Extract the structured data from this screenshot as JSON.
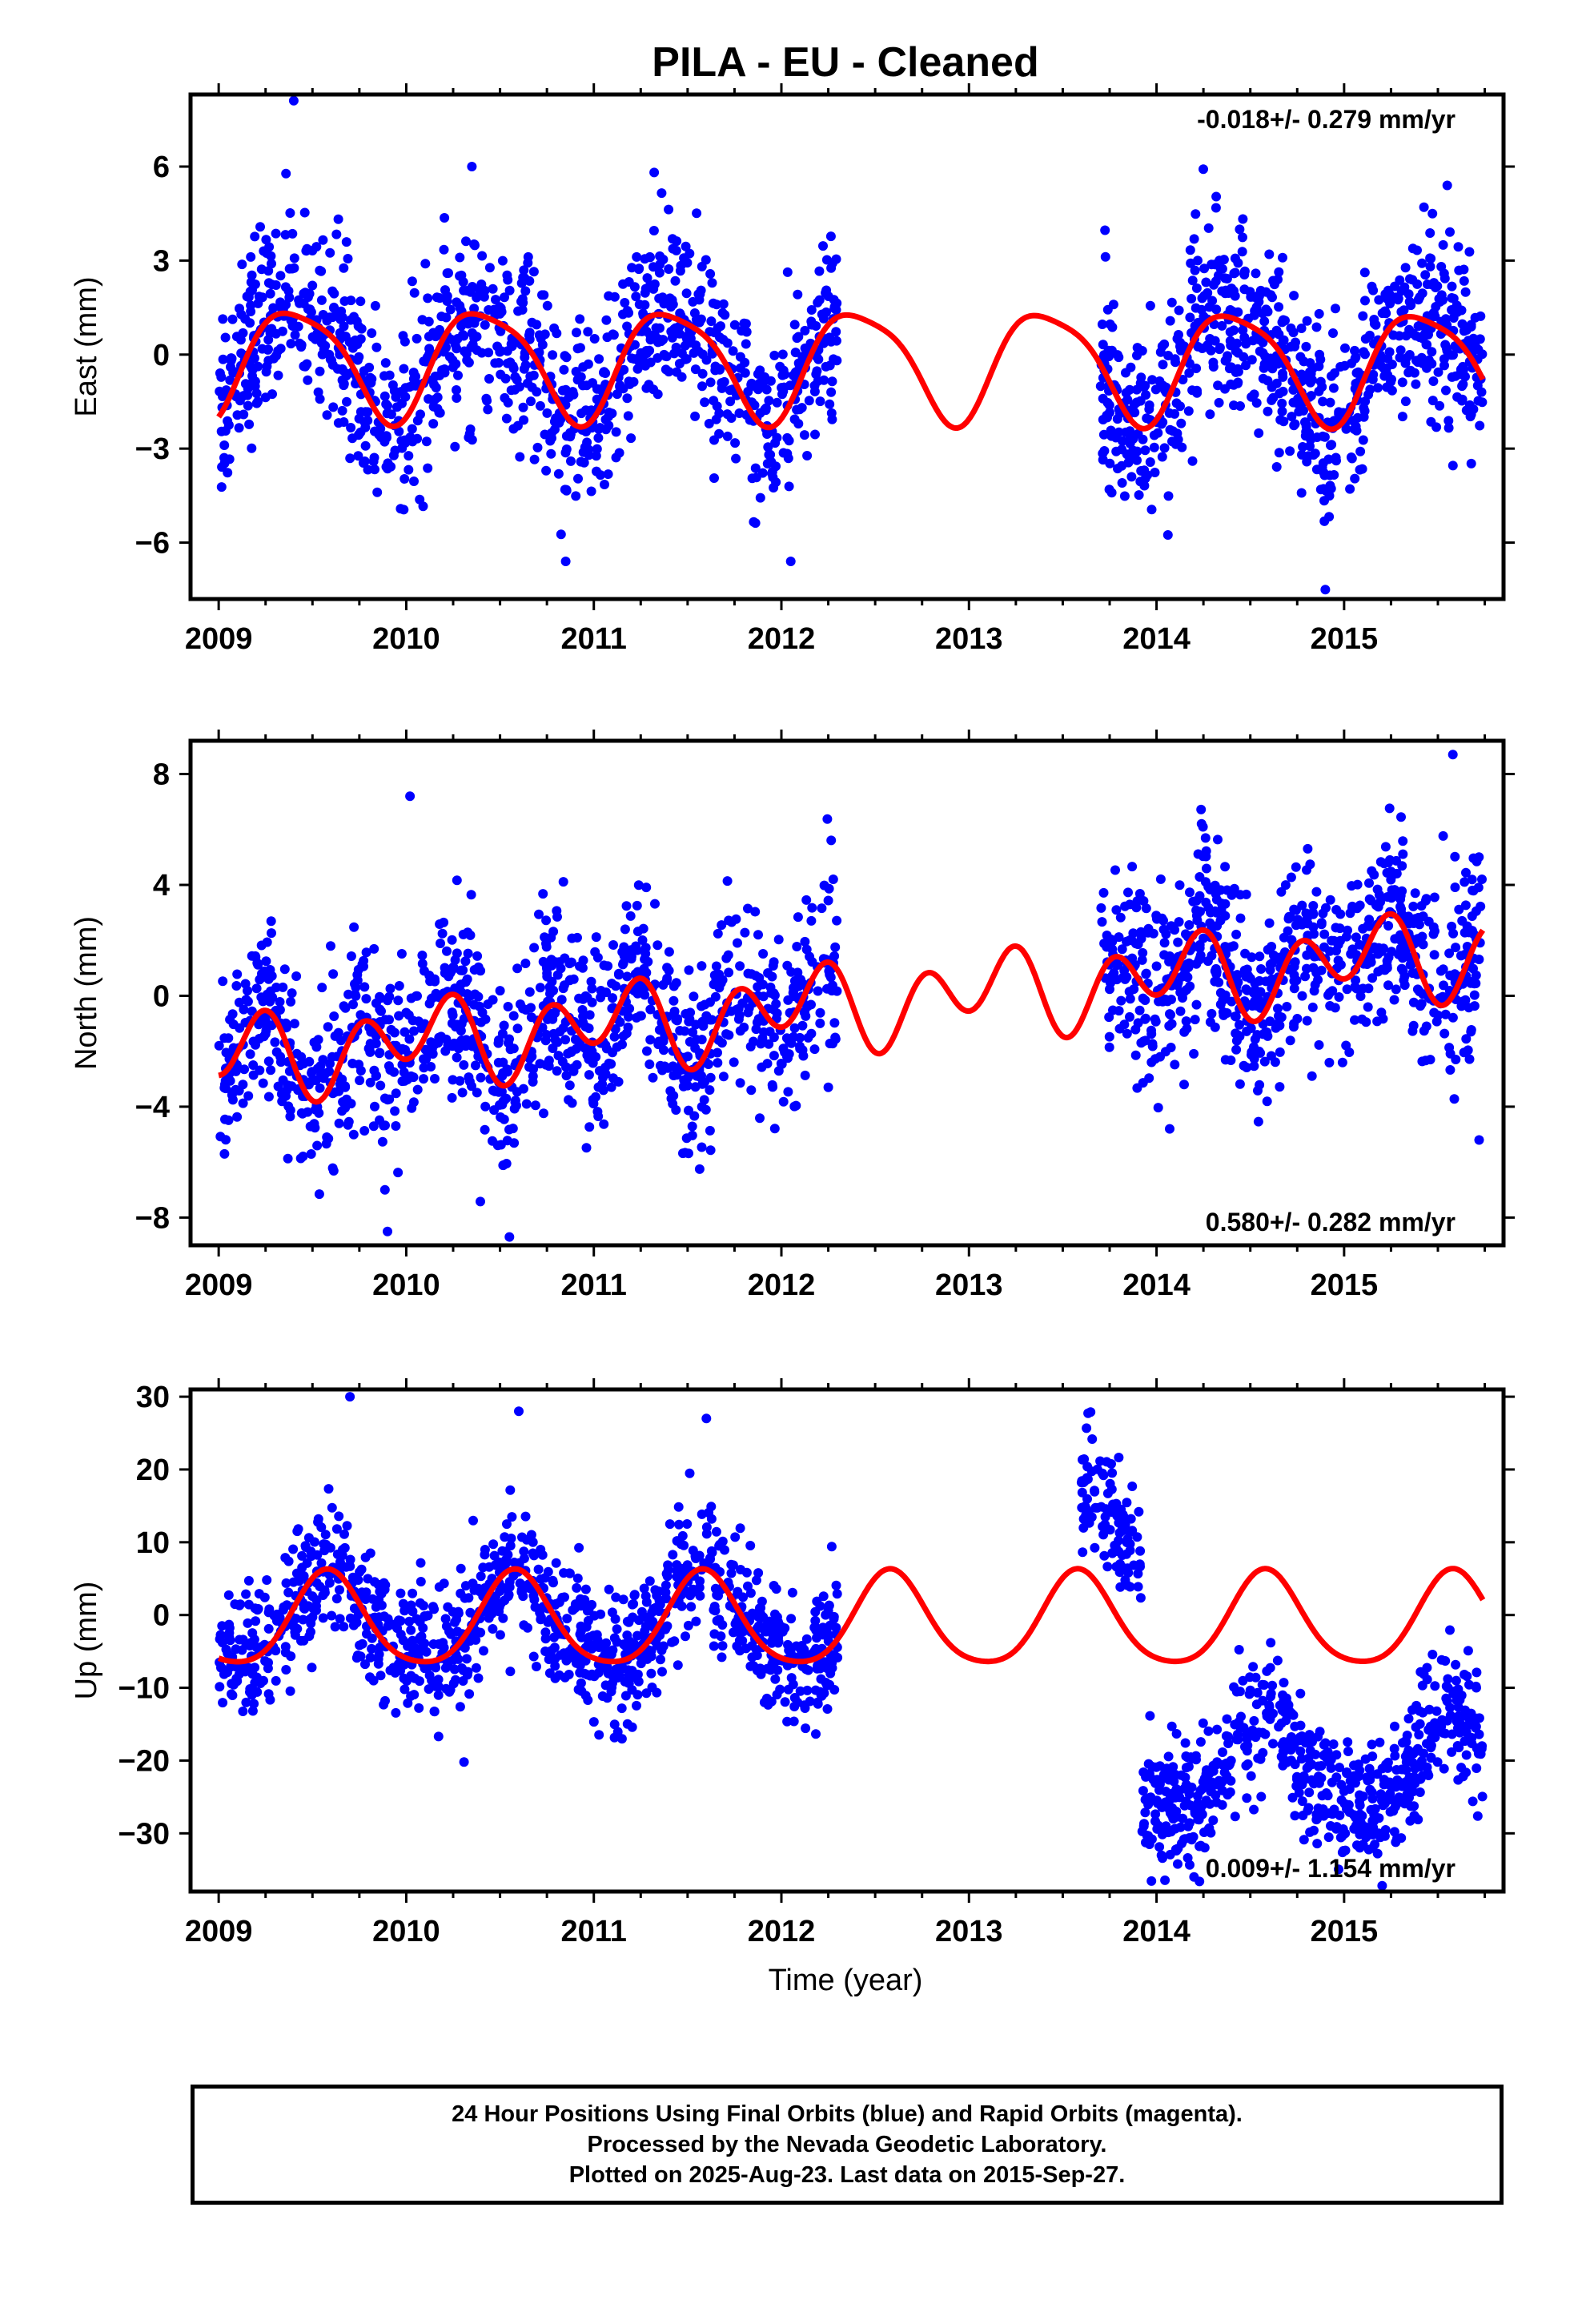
{
  "title": "PILA  - EU - Cleaned",
  "xlabel": "Time (year)",
  "x_ticks": [
    "2009",
    "2010",
    "2011",
    "2012",
    "2013",
    "2014",
    "2015"
  ],
  "colors": {
    "points": "#0000ff",
    "fit": "#ff0000",
    "axis": "#000000"
  },
  "footer": {
    "line1": "24 Hour Positions Using Final Orbits (blue) and Rapid Orbits (magenta).",
    "line2": "Processed by the Nevada Geodetic Laboratory.",
    "line3": "Plotted on 2025-Aug-23. Last data on 2015-Sep-27."
  },
  "chart_data": [
    {
      "type": "scatter",
      "ylabel": "East (mm)",
      "rate_text": "-0.018+/- 0.279 mm/yr",
      "rate_position": "top-right",
      "xlim": [
        2008.85,
        2015.85
      ],
      "ylim": [
        -7.8,
        8.3
      ],
      "y_ticks": [
        -6,
        -3,
        0,
        3,
        6
      ],
      "y_tick_labels": [
        "−6",
        "−3",
        "0",
        "3",
        "6"
      ],
      "segments": [
        {
          "x_start": 2009.0,
          "x_end": 2012.3,
          "count": 1100,
          "spread": 1.5
        },
        {
          "x_start": 2013.7,
          "x_end": 2015.74,
          "count": 750,
          "spread": 1.5
        }
      ],
      "outliers": [
        [
          2009.4,
          8.1
        ],
        [
          2010.35,
          6.0
        ],
        [
          2014.9,
          -7.5
        ],
        [
          2012.05,
          -6.6
        ],
        [
          2010.85,
          -6.6
        ],
        [
          2015.55,
          5.4
        ]
      ],
      "fit": {
        "x_range": [
          2009.0,
          2015.74
        ],
        "offset": -0.25,
        "rate": -0.018,
        "t0": 2012.4,
        "harmonics": [
          {
            "amp_cos": -1.5,
            "amp_sin": 0.9,
            "period": 1.0
          },
          {
            "amp_cos": -0.3,
            "amp_sin": 0.2,
            "period": 0.5
          }
        ]
      }
    },
    {
      "type": "scatter",
      "ylabel": "North (mm)",
      "rate_text": "0.580+/- 0.282 mm/yr",
      "rate_position": "bottom-right",
      "xlim": [
        2008.85,
        2015.85
      ],
      "ylim": [
        -9.0,
        9.2
      ],
      "y_ticks": [
        -8,
        -4,
        0,
        4,
        8
      ],
      "y_tick_labels": [
        "−8",
        "−4",
        "0",
        "4",
        "8"
      ],
      "segments": [
        {
          "x_start": 2009.0,
          "x_end": 2012.3,
          "count": 1100,
          "spread": 1.7
        },
        {
          "x_start": 2013.7,
          "x_end": 2015.74,
          "count": 750,
          "spread": 1.7
        }
      ],
      "outliers": [
        [
          2015.58,
          8.7
        ],
        [
          2010.02,
          7.2
        ],
        [
          2010.55,
          -8.7
        ],
        [
          2009.9,
          -8.5
        ],
        [
          2015.72,
          -5.2
        ],
        [
          2014.07,
          -4.8
        ]
      ],
      "fit": {
        "x_range": [
          2009.0,
          2015.74
        ],
        "offset": -0.3,
        "rate": 0.58,
        "t0": 2012.4,
        "harmonics": [
          {
            "amp_cos": 0.6,
            "amp_sin": 0.4,
            "period": 1.0
          },
          {
            "amp_cos": -1.2,
            "amp_sin": -0.2,
            "period": 0.5
          }
        ]
      }
    },
    {
      "type": "scatter",
      "ylabel": "Up (mm)",
      "rate_text": "0.009+/- 1.154 mm/yr",
      "rate_position": "bottom-right",
      "xlim": [
        2008.85,
        2015.85
      ],
      "ylim": [
        -38,
        31
      ],
      "y_ticks": [
        -30,
        -20,
        -10,
        0,
        10,
        20,
        30
      ],
      "y_tick_labels": [
        "−30",
        "−20",
        "−10",
        "0",
        "10",
        "20",
        "30"
      ],
      "segments": [
        {
          "x_start": 2009.0,
          "x_end": 2012.3,
          "count": 1100,
          "spread": 4.5,
          "shift": 0
        },
        {
          "x_start": 2013.6,
          "x_end": 2013.92,
          "count": 110,
          "spread": 4.0,
          "shift": 12
        },
        {
          "x_start": 2013.92,
          "x_end": 2015.74,
          "count": 650,
          "spread": 4.5,
          "shift": -20
        }
      ],
      "outliers": [
        [
          2009.7,
          30
        ],
        [
          2010.6,
          28
        ],
        [
          2011.6,
          27
        ],
        [
          2011.15,
          -17
        ],
        [
          2014.2,
          -36
        ]
      ],
      "fit": {
        "x_range": [
          2009.0,
          2015.74
        ],
        "offset": -1.0,
        "rate": 0.009,
        "t0": 2012.4,
        "harmonics": [
          {
            "amp_cos": -5.5,
            "amp_sin": -3.2,
            "period": 1.0
          },
          {
            "amp_cos": 0.6,
            "amp_sin": 0.8,
            "period": 0.5
          }
        ]
      }
    }
  ]
}
